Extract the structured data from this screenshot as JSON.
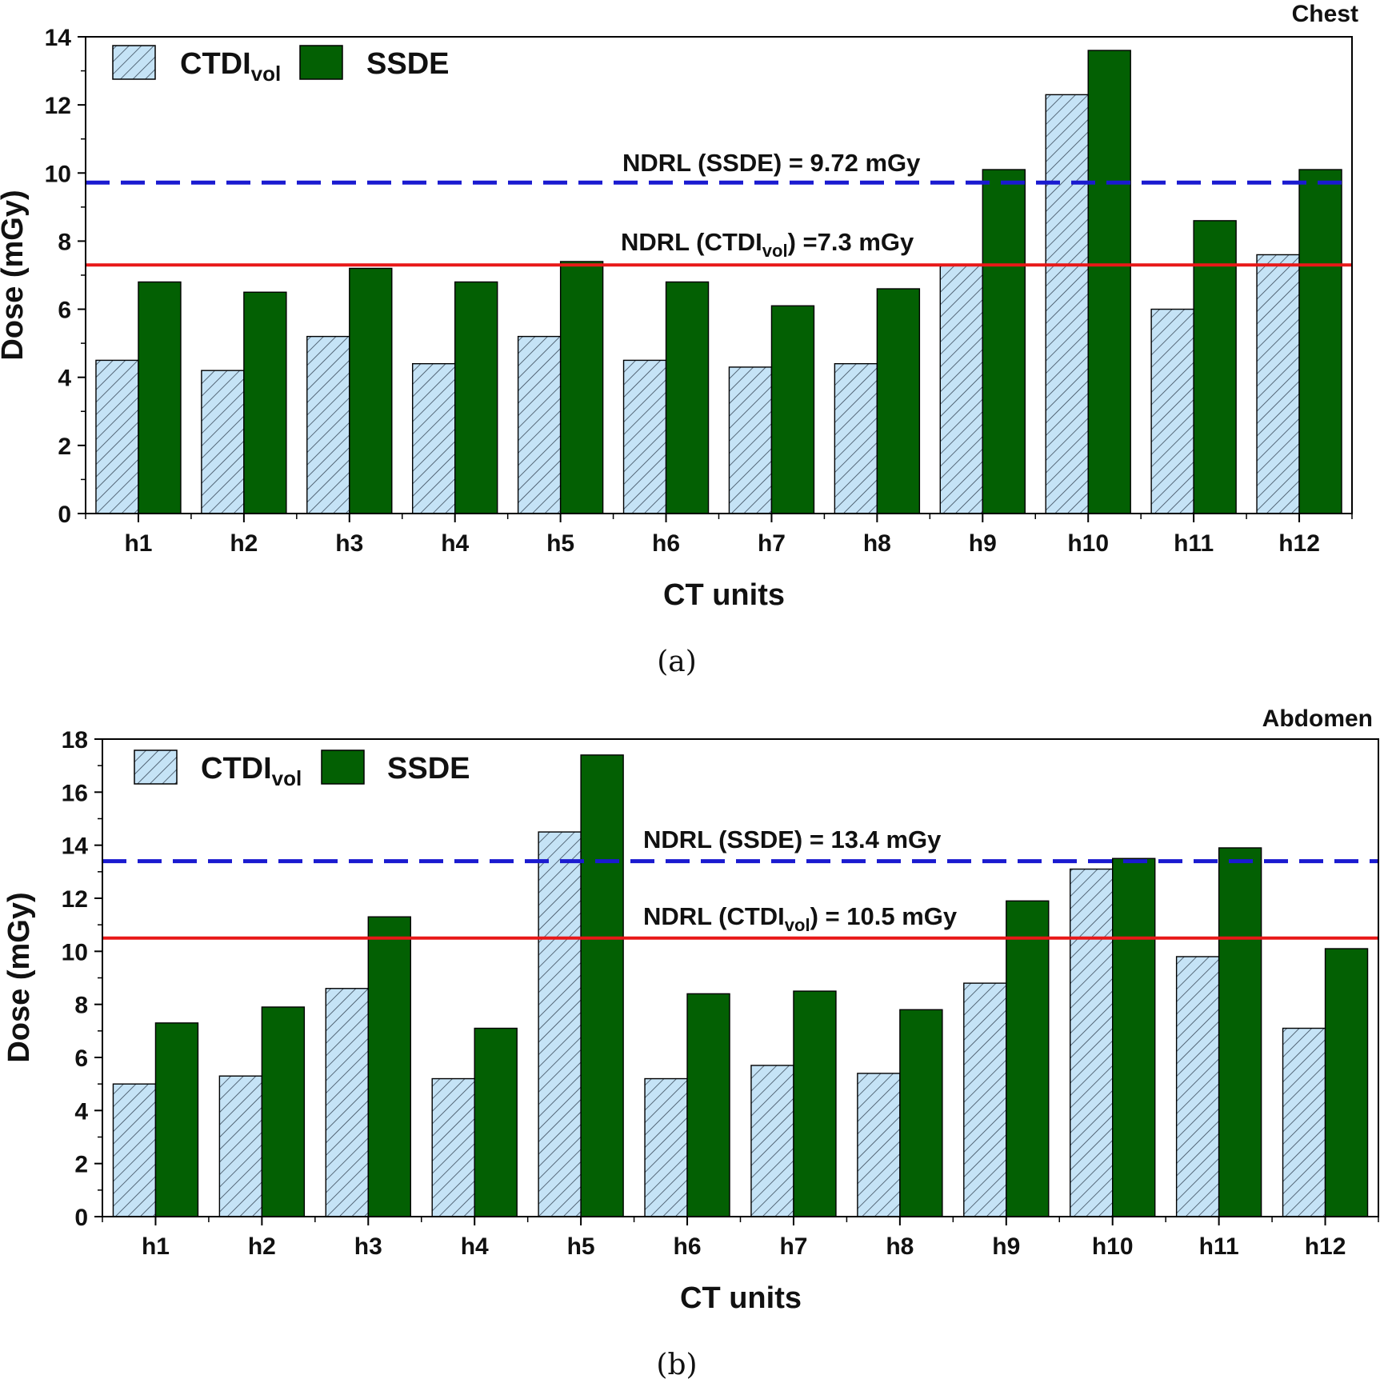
{
  "colors": {
    "ctdi_fill": "#c5e3f6",
    "ctdi_hatch": "#3a4a5a",
    "ssde_fill": "#036003",
    "ndrl_ssde": "#1a1ad0",
    "ndrl_ctdi": "#e81818"
  },
  "chart_data": [
    {
      "type": "bar",
      "panel_label": "(a)",
      "title": "Chest",
      "xlabel": "CT units",
      "ylabel": "Dose (mGy)",
      "ylim": [
        0,
        14
      ],
      "yticks": [
        0,
        2,
        4,
        6,
        8,
        10,
        12,
        14
      ],
      "grid": false,
      "legend_position": "top-left",
      "categories": [
        "h1",
        "h2",
        "h3",
        "h4",
        "h5",
        "h6",
        "h7",
        "h8",
        "h9",
        "h10",
        "h11",
        "h12"
      ],
      "series": [
        {
          "name": "CTDIvol",
          "legend_main": "CTDI",
          "legend_sub": "vol",
          "pattern": "hatched",
          "values": [
            4.5,
            4.2,
            5.2,
            4.4,
            5.2,
            4.5,
            4.3,
            4.4,
            7.3,
            12.3,
            6.0,
            7.6
          ]
        },
        {
          "name": "SSDE",
          "legend_main": "SSDE",
          "legend_sub": "",
          "pattern": "solid",
          "values": [
            6.8,
            6.5,
            7.2,
            6.8,
            7.4,
            6.8,
            6.1,
            6.6,
            10.1,
            13.6,
            8.6,
            10.1
          ]
        }
      ],
      "reference_lines": [
        {
          "id": "ssde",
          "value": 9.72,
          "style": "dashed",
          "label_parts": [
            "NDRL (SSDE) = 9.72 mGy"
          ]
        },
        {
          "id": "ctdi",
          "value": 7.3,
          "style": "solid",
          "label_parts": [
            "NDRL (CTDI",
            "vol",
            ") =7.3 mGy"
          ]
        }
      ]
    },
    {
      "type": "bar",
      "panel_label": "(b)",
      "title": "Abdomen",
      "xlabel": "CT units",
      "ylabel": "Dose (mGy)",
      "ylim": [
        0,
        18
      ],
      "yticks": [
        0,
        2,
        4,
        6,
        8,
        10,
        12,
        14,
        16,
        18
      ],
      "grid": false,
      "legend_position": "top-left",
      "categories": [
        "h1",
        "h2",
        "h3",
        "h4",
        "h5",
        "h6",
        "h7",
        "h8",
        "h9",
        "h10",
        "h11",
        "h12"
      ],
      "series": [
        {
          "name": "CTDIvol",
          "legend_main": "CTDI",
          "legend_sub": "vol",
          "pattern": "hatched",
          "values": [
            5.0,
            5.3,
            8.6,
            5.2,
            14.5,
            5.2,
            5.7,
            5.4,
            8.8,
            13.1,
            9.8,
            7.1
          ]
        },
        {
          "name": "SSDE",
          "legend_main": "SSDE",
          "legend_sub": "",
          "pattern": "solid",
          "values": [
            7.3,
            7.9,
            11.3,
            7.1,
            17.4,
            8.4,
            8.5,
            7.8,
            11.9,
            13.5,
            13.9,
            10.1
          ]
        }
      ],
      "reference_lines": [
        {
          "id": "ssde",
          "value": 13.4,
          "style": "dashed",
          "label_parts": [
            "NDRL (SSDE) = 13.4 mGy"
          ]
        },
        {
          "id": "ctdi",
          "value": 10.5,
          "style": "solid",
          "label_parts": [
            "NDRL (CTDI",
            "vol",
            ") = 10.5 mGy"
          ]
        }
      ]
    }
  ]
}
